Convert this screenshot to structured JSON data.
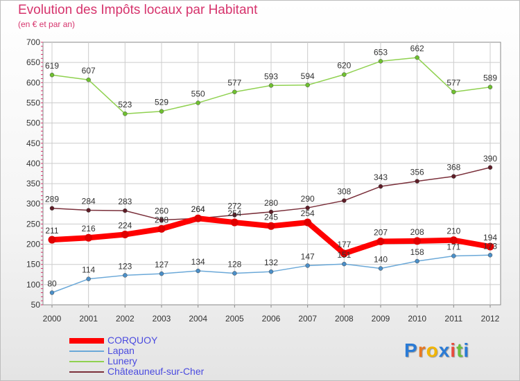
{
  "chart_data": {
    "type": "line",
    "title": "Evolution des Impôts locaux par Habitant",
    "subtitle": "(en € et par an)",
    "xlabel": "",
    "ylabel": "",
    "ylim": [
      50,
      700
    ],
    "yticks": [
      50,
      100,
      150,
      200,
      250,
      300,
      350,
      400,
      450,
      500,
      550,
      600,
      650,
      700
    ],
    "categories": [
      "2000",
      "2001",
      "2002",
      "2003",
      "2004",
      "2005",
      "2006",
      "2007",
      "2008",
      "2009",
      "2010",
      "2011",
      "2012"
    ],
    "grid": true,
    "legend_position": "bottom-left",
    "series": [
      {
        "name": "Lunery",
        "color": "#8fd14f",
        "dot": "#6fc030",
        "values": [
          619,
          607,
          523,
          529,
          550,
          577,
          593,
          594,
          620,
          653,
          662,
          577,
          589
        ],
        "labels": [
          "619",
          "607",
          "523",
          "529",
          "550",
          "577",
          "593",
          "594",
          "620",
          "653",
          "662",
          "577",
          "589"
        ]
      },
      {
        "name": "Châteauneuf-sur-Cher",
        "color": "#7a2f3a",
        "dot": "#5e1d27",
        "values": [
          289,
          284,
          283,
          260,
          264,
          272,
          280,
          290,
          308,
          343,
          356,
          368,
          390
        ],
        "labels": [
          "289",
          "284",
          "283",
          "260",
          "264",
          "272",
          "280",
          "290",
          "308",
          "343",
          "356",
          "368",
          "390"
        ]
      },
      {
        "name": "Lapan",
        "color": "#6aa8d8",
        "dot": "#4b8fc8",
        "values": [
          80,
          114,
          123,
          127,
          134,
          128,
          132,
          147,
          151,
          140,
          158,
          171,
          173
        ],
        "labels": [
          "80",
          "114",
          "123",
          "127",
          "134",
          "128",
          "132",
          "147",
          "151",
          "140",
          "158",
          "171",
          "173"
        ]
      },
      {
        "name": "CORQUOY",
        "color": "#ff0000",
        "dot": "#e00000",
        "values": [
          211,
          216,
          224,
          238,
          264,
          254,
          245,
          254,
          177,
          207,
          208,
          210,
          194
        ],
        "labels": [
          "211",
          "216",
          "224",
          "238",
          "264",
          "254",
          "245",
          "254",
          "177",
          "207",
          "208",
          "210",
          "194"
        ]
      }
    ],
    "legend": [
      "CORQUOY",
      "Lapan",
      "Lunery",
      "Châteauneuf-sur-Cher"
    ]
  },
  "logo": {
    "text": "Proxiti",
    "letters": [
      "P",
      "r",
      "o",
      "x",
      "i",
      "t",
      "i"
    ],
    "colors": [
      "#2a7bd6",
      "#e87722",
      "#f2b500",
      "#2a7bd6",
      "#e84c3d",
      "#6cbf3f",
      "#2a7bd6"
    ]
  },
  "colors": {
    "title": "#d6336c",
    "axis": "#d6336c",
    "grid": "#cccccc",
    "legend_text": "#4a4adf"
  }
}
